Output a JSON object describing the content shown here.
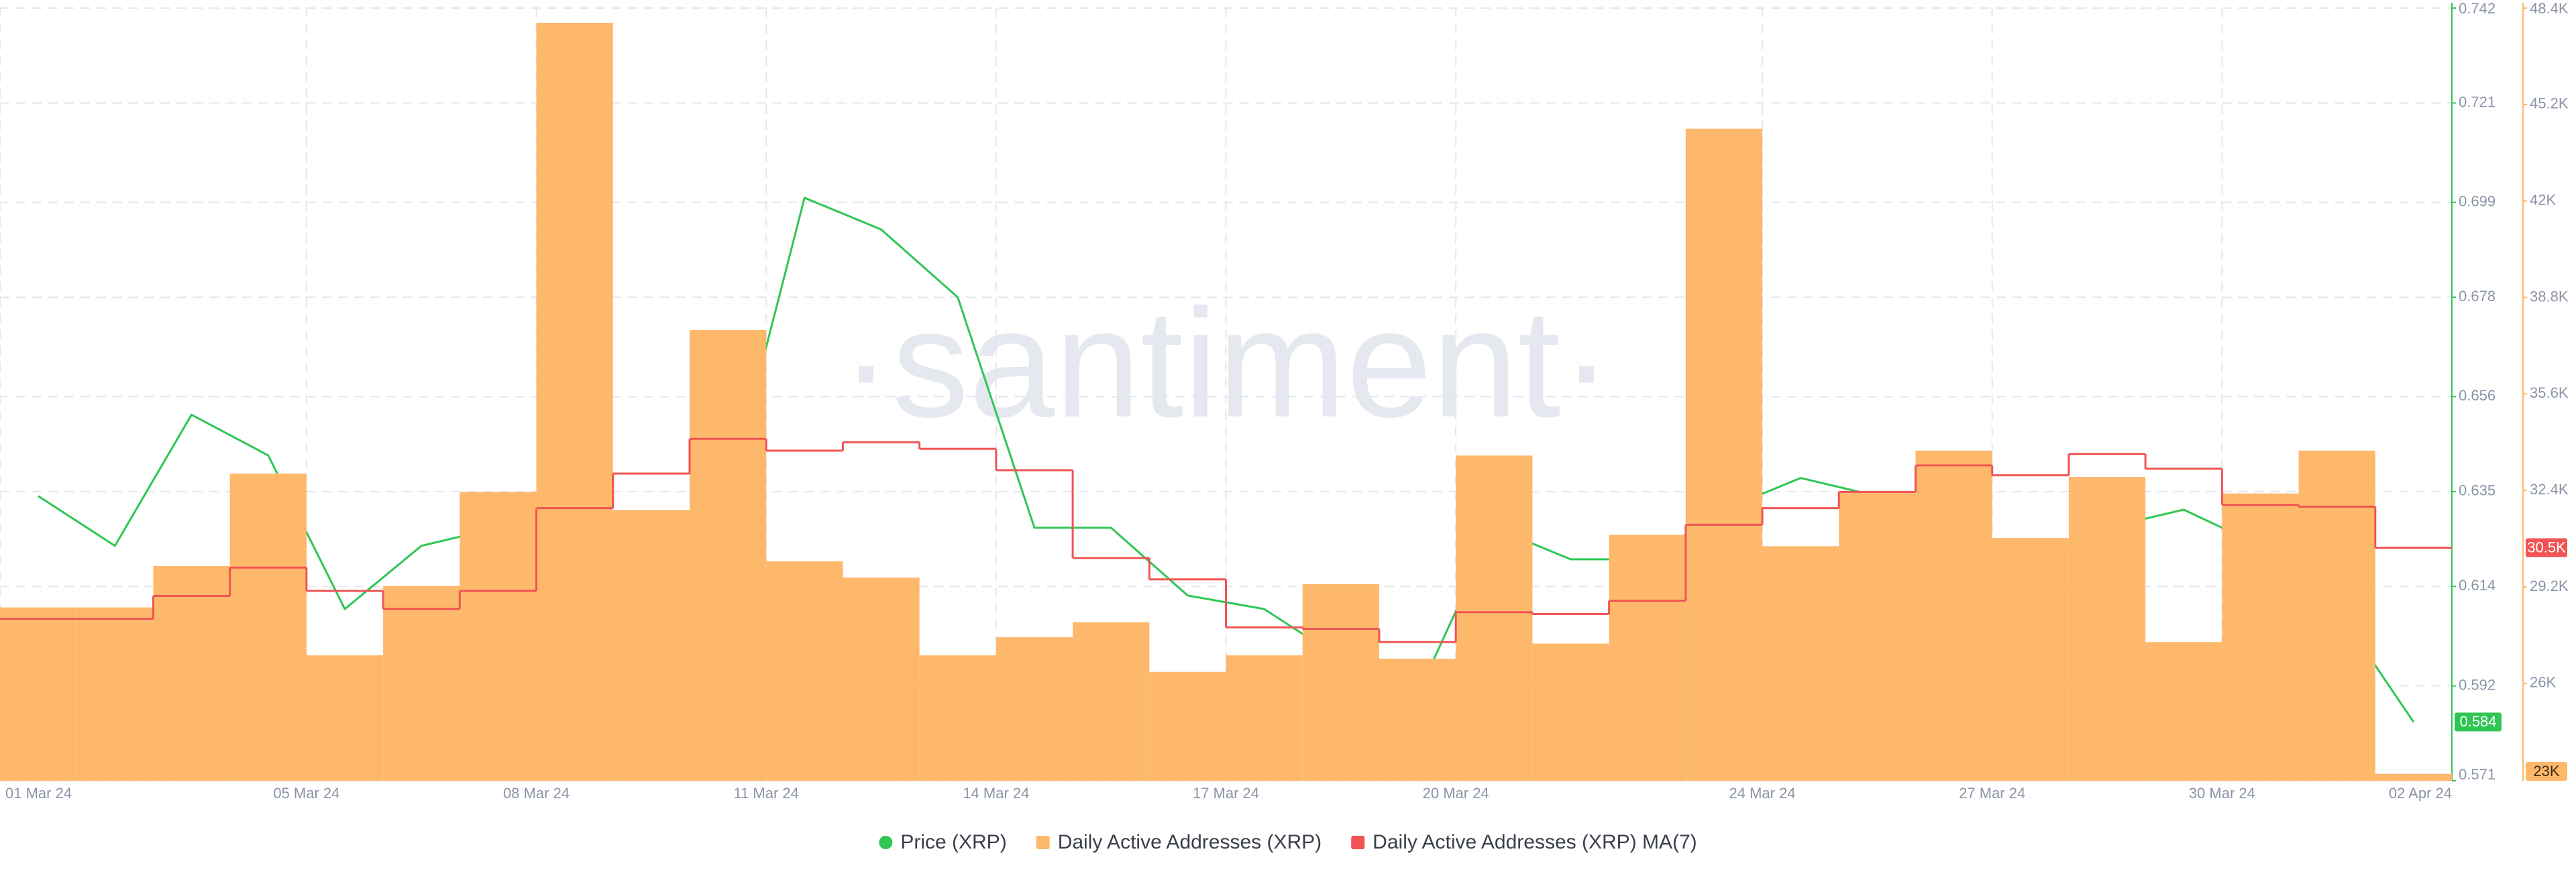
{
  "chart_data": {
    "type": "combo",
    "watermark": "·santiment·",
    "x": [
      "2024-03-01",
      "2024-03-02",
      "2024-03-03",
      "2024-03-04",
      "2024-03-05",
      "2024-03-06",
      "2024-03-07",
      "2024-03-08",
      "2024-03-09",
      "2024-03-10",
      "2024-03-11",
      "2024-03-12",
      "2024-03-13",
      "2024-03-14",
      "2024-03-15",
      "2024-03-16",
      "2024-03-17",
      "2024-03-18",
      "2024-03-19",
      "2024-03-20",
      "2024-03-21",
      "2024-03-22",
      "2024-03-23",
      "2024-03-24",
      "2024-03-25",
      "2024-03-26",
      "2024-03-27",
      "2024-03-28",
      "2024-03-29",
      "2024-03-30",
      "2024-03-31",
      "2024-04-01"
    ],
    "xlim": [
      "2024-03-01",
      "2024-04-02"
    ],
    "xticks": [
      {
        "value": "2024-03-01",
        "label": "01 Mar 24"
      },
      {
        "value": "2024-03-05",
        "label": "05 Mar 24"
      },
      {
        "value": "2024-03-08",
        "label": "08 Mar 24"
      },
      {
        "value": "2024-03-11",
        "label": "11 Mar 24"
      },
      {
        "value": "2024-03-14",
        "label": "14 Mar 24"
      },
      {
        "value": "2024-03-17",
        "label": "17 Mar 24"
      },
      {
        "value": "2024-03-20",
        "label": "20 Mar 24"
      },
      {
        "value": "2024-03-24",
        "label": "24 Mar 24"
      },
      {
        "value": "2024-03-27",
        "label": "27 Mar 24"
      },
      {
        "value": "2024-03-30",
        "label": "30 Mar 24"
      },
      {
        "value": "2024-04-02",
        "label": "02 Apr 24"
      }
    ],
    "ylim": [
      0.571,
      0.742
    ],
    "yticks": [
      0.571,
      0.592,
      0.614,
      0.635,
      0.656,
      0.678,
      0.699,
      0.721,
      0.742
    ],
    "y2lim": [
      22770,
      48400
    ],
    "y2ticks": [
      {
        "value": 26000,
        "label": "26K"
      },
      {
        "value": 29200,
        "label": "29.2K"
      },
      {
        "value": 32400,
        "label": "32.4K"
      },
      {
        "value": 35600,
        "label": "35.6K"
      },
      {
        "value": 38800,
        "label": "38.8K"
      },
      {
        "value": 42000,
        "label": "42K"
      },
      {
        "value": 45200,
        "label": "45.2K"
      },
      {
        "value": 48400,
        "label": "48.4K"
      }
    ],
    "grid": true,
    "series": [
      {
        "name": "Price (XRP)",
        "type": "line",
        "color": "#2fc653",
        "values": [
          0.634,
          0.623,
          0.652,
          0.643,
          0.609,
          0.623,
          0.627,
          0.627,
          0.616,
          0.634,
          0.7,
          0.693,
          0.678,
          0.627,
          0.627,
          0.612,
          0.609,
          0.598,
          0.59,
          0.627,
          0.62,
          0.62,
          0.631,
          0.638,
          0.634,
          0.62,
          0.62,
          0.627,
          0.631,
          0.623,
          0.609,
          0.584
        ],
        "value_labels": [
          null,
          null,
          null,
          null,
          null,
          null,
          null,
          null,
          null,
          null,
          null,
          null,
          null,
          null,
          null,
          null,
          null,
          null,
          null,
          null,
          null,
          null,
          null,
          null,
          null,
          null,
          null,
          null,
          null,
          null,
          null,
          "0.584"
        ]
      },
      {
        "name": "Daily Active Addresses (XRP)",
        "type": "bar",
        "color": "#fdb86b",
        "axis": "y2",
        "values": [
          28520,
          28520,
          29890,
          32960,
          26930,
          29230,
          32350,
          47910,
          31750,
          37720,
          30050,
          29510,
          26930,
          27530,
          28030,
          26380,
          26930,
          29290,
          26820,
          33560,
          27320,
          30930,
          44400,
          30550,
          32350,
          33720,
          30820,
          32850,
          27370,
          32300,
          33720,
          23000
        ],
        "value_labels": [
          null,
          null,
          null,
          null,
          null,
          null,
          null,
          null,
          null,
          null,
          null,
          null,
          null,
          null,
          null,
          null,
          null,
          null,
          null,
          null,
          null,
          null,
          null,
          null,
          null,
          null,
          null,
          null,
          null,
          null,
          null,
          "23K"
        ]
      },
      {
        "name": "Daily Active Addresses (XRP) MA(7)",
        "type": "step",
        "color": "#f05454",
        "axis": "y2",
        "values": [
          28140,
          28140,
          28900,
          29840,
          29070,
          28470,
          29070,
          31810,
          32960,
          34110,
          33720,
          34000,
          33780,
          33070,
          30160,
          29450,
          27860,
          27810,
          27370,
          28360,
          28300,
          28740,
          31260,
          31810,
          32350,
          33230,
          32900,
          33610,
          33120,
          31920,
          31860,
          30500
        ],
        "value_labels": [
          null,
          null,
          null,
          null,
          null,
          null,
          null,
          null,
          null,
          null,
          null,
          null,
          null,
          null,
          null,
          null,
          null,
          null,
          null,
          null,
          null,
          null,
          null,
          null,
          null,
          null,
          null,
          null,
          null,
          null,
          null,
          "30.5K"
        ]
      }
    ]
  }
}
